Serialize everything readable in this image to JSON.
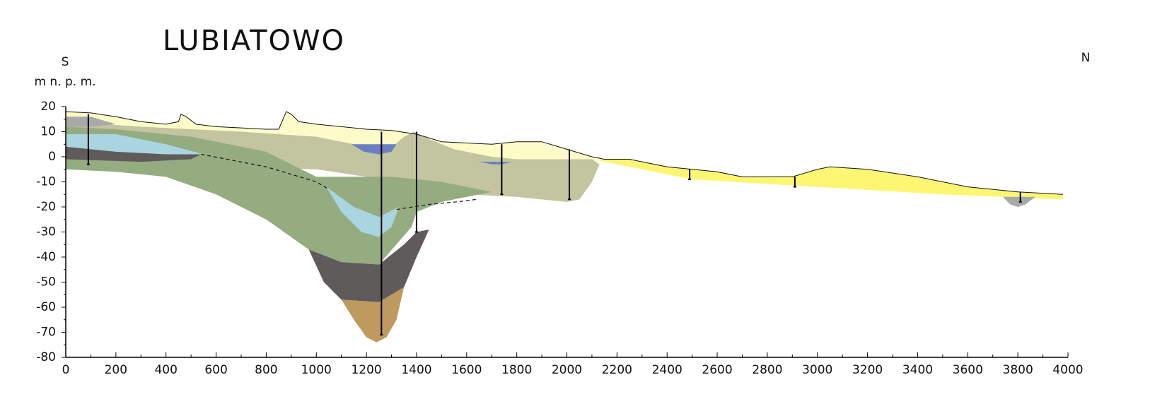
{
  "chart_data": {
    "type": "cross-section",
    "title": "LUBIATOWO",
    "left_label": "S",
    "right_label": "N",
    "y_label": "m n. p. m.",
    "xlim": [
      0,
      4000
    ],
    "ylim": [
      -80,
      20
    ],
    "xticks": [
      0,
      200,
      400,
      600,
      800,
      1000,
      1200,
      1400,
      1600,
      1800,
      2000,
      2200,
      2400,
      2600,
      2800,
      3000,
      3200,
      3400,
      3600,
      3800,
      4000
    ],
    "yticks": [
      -80,
      -70,
      -60,
      -50,
      -40,
      -30,
      -20,
      -10,
      0,
      10,
      20
    ],
    "layers": [
      {
        "color": "#fdf673",
        "x": [
          2100,
          2150,
          2250,
          2300,
          2400,
          2600,
          2700,
          2900,
          3000,
          3050,
          3200,
          3400,
          3600,
          3800,
          3980,
          3980,
          3500,
          3000,
          2500,
          2100
        ],
        "y": [
          0,
          -1,
          -1,
          -2,
          -4,
          -6,
          -8,
          -8,
          -5,
          -4,
          -5,
          -8,
          -12,
          -14,
          -15,
          -17,
          -15,
          -12,
          -9,
          -1
        ]
      },
      {
        "color": "#fdfbc8",
        "x": [
          0,
          100,
          200,
          300,
          400,
          450,
          460,
          480,
          520,
          600,
          700,
          800,
          850,
          880,
          900,
          930,
          1000,
          1100,
          1200,
          1300,
          1400,
          1500,
          1700,
          1800,
          1900,
          2000,
          2100,
          2150,
          2100,
          1500,
          500,
          0
        ],
        "y": [
          18,
          17.5,
          16,
          14,
          13,
          14,
          17,
          16,
          13,
          12,
          11.5,
          11,
          11,
          18,
          17,
          14,
          13,
          12,
          11,
          10.5,
          9,
          6,
          5,
          6,
          6,
          3,
          0,
          -1,
          -2,
          0,
          5,
          8
        ]
      },
      {
        "color": "#c3c4a0",
        "x": [
          0,
          300,
          700,
          1000,
          1200,
          1280,
          1350,
          1390,
          1450,
          1550,
          1700,
          1800,
          2100,
          2130,
          2100,
          2050,
          2000,
          1800,
          1600,
          1400,
          1300,
          1200,
          1000,
          0
        ],
        "y": [
          14,
          12,
          10,
          8,
          4,
          2,
          8,
          10,
          7,
          3,
          0,
          -1,
          -1,
          -3,
          -10,
          -17,
          -18,
          -16,
          -15,
          -15,
          -10,
          -8,
          -5,
          -2
        ]
      },
      {
        "color": "#95ac80",
        "x": [
          0,
          200,
          500,
          800,
          1000,
          1300,
          1500,
          1700,
          1500,
          1400,
          1380,
          1250,
          1100,
          970,
          800,
          600,
          400,
          200,
          0
        ],
        "y": [
          12,
          11,
          8,
          2,
          -8,
          -8,
          -10,
          -14,
          -18,
          -22,
          -28,
          -43,
          -42,
          -37,
          -25,
          -15,
          -8,
          -6,
          -5
        ]
      },
      {
        "color": "#a9d5e0",
        "x": [
          0,
          200,
          400,
          550,
          400,
          200,
          0
        ],
        "y": [
          9,
          9,
          5,
          1,
          0,
          0,
          3
        ]
      },
      {
        "color": "#a9d5e0",
        "x": [
          1040,
          1150,
          1250,
          1330,
          1300,
          1250,
          1180,
          1100
        ],
        "y": [
          -12,
          -20,
          -24,
          -20,
          -28,
          -32,
          -30,
          -22
        ]
      },
      {
        "color": "#5f5b5b",
        "x": [
          0,
          200,
          400,
          540,
          500,
          300,
          0
        ],
        "y": [
          4,
          2,
          1,
          1,
          -1,
          -2,
          -1
        ]
      },
      {
        "color": "#5f5b5b",
        "x": [
          970,
          1100,
          1250,
          1350,
          1400,
          1450,
          1400,
          1350,
          1250,
          1100,
          1030
        ],
        "y": [
          -37,
          -42,
          -43,
          -35,
          -30,
          -29,
          -40,
          -52,
          -58,
          -57,
          -50
        ]
      },
      {
        "color": "#be9a5e",
        "x": [
          1100,
          1250,
          1350,
          1320,
          1280,
          1240,
          1200,
          1150
        ],
        "y": [
          -57,
          -58,
          -52,
          -65,
          -72,
          -74,
          -72,
          -65
        ]
      },
      {
        "color": "#a9a9a9",
        "x": [
          0,
          100,
          200,
          100,
          0
        ],
        "y": [
          16,
          16,
          13,
          12,
          12
        ]
      },
      {
        "color": "#a9a9a9",
        "x": [
          3740,
          3870,
          3830,
          3800,
          3770
        ],
        "y": [
          -16,
          -16,
          -19,
          -20,
          -19
        ]
      },
      {
        "color": "#6b7fc2",
        "x": [
          1140,
          1320,
          1300,
          1250,
          1190
        ],
        "y": [
          5,
          5,
          2,
          1,
          2
        ]
      },
      {
        "color": "#6b7fc2",
        "x": [
          1650,
          1780,
          1740,
          1700
        ],
        "y": [
          -2,
          -2,
          -3,
          -3
        ]
      }
    ],
    "surface": {
      "x": [
        0,
        100,
        200,
        300,
        400,
        450,
        460,
        480,
        520,
        600,
        700,
        800,
        850,
        880,
        900,
        930,
        1000,
        1100,
        1200,
        1300,
        1400,
        1500,
        1700,
        1800,
        1900,
        2000,
        2100,
        2150,
        2250,
        2300,
        2400,
        2600,
        2700,
        2900,
        3000,
        3050,
        3200,
        3400,
        3600,
        3800,
        3980
      ],
      "y": [
        18,
        17.5,
        16,
        14,
        13,
        14,
        17,
        16,
        13,
        12,
        11.5,
        11,
        11,
        18,
        17,
        14,
        13,
        12,
        11,
        10.5,
        9,
        6,
        5,
        6,
        6,
        3,
        0,
        -1,
        -1,
        -2,
        -4,
        -6,
        -8,
        -8,
        -5,
        -4,
        -5,
        -8,
        -12,
        -14,
        -15
      ]
    },
    "contacts": [
      {
        "x": [
          540,
          800,
          1000,
          1050
        ],
        "y": [
          1,
          -4,
          -10,
          -13
        ]
      },
      {
        "x": [
          1320,
          1450,
          1560,
          1640
        ],
        "y": [
          -21,
          -19,
          -18,
          -17
        ]
      }
    ],
    "boreholes": {
      "x": [
        90,
        1260,
        1400,
        1740,
        2010,
        2490,
        2910,
        3810
      ],
      "top": [
        17,
        10,
        10,
        5,
        3,
        -5,
        -8,
        -14
      ],
      "bottom": [
        -3,
        -71,
        -30,
        -15,
        -17,
        -9,
        -12,
        -18
      ]
    }
  }
}
